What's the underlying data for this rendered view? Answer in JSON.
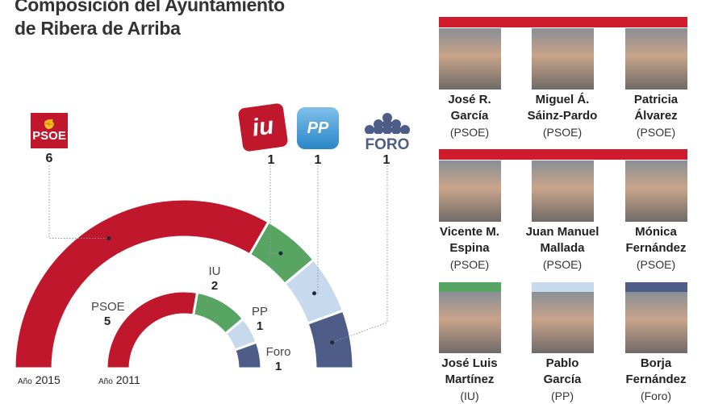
{
  "title": [
    "Composición del Ayuntamiento",
    "de Ribera de Arriba"
  ],
  "colors": {
    "PSOE": "#c0172c",
    "IU": "#58a563",
    "PP": "#c7d9ec",
    "Foro": "#4d5d88",
    "header_bar": "#d01a2e"
  },
  "logos": [
    {
      "party": "PSOE",
      "text": "PSOE",
      "seats": "6"
    },
    {
      "party": "IU",
      "text": "iu",
      "seats": "1"
    },
    {
      "party": "PP",
      "text": "PP",
      "seats": "1"
    },
    {
      "party": "Foro",
      "text": "FORO",
      "seats": "1"
    }
  ],
  "chart_data": {
    "type": "parliament-semicircle",
    "series": [
      {
        "name": "Año 2015",
        "year_prefix": "Año",
        "year": "2015",
        "values": [
          {
            "party": "PSOE",
            "seats": 6
          },
          {
            "party": "IU",
            "seats": 1
          },
          {
            "party": "PP",
            "seats": 1
          },
          {
            "party": "Foro",
            "seats": 1
          }
        ]
      },
      {
        "name": "Año 2011",
        "year_prefix": "Año",
        "year": "2011",
        "values": [
          {
            "party": "PSOE",
            "seats": 5
          },
          {
            "party": "IU",
            "seats": 2
          },
          {
            "party": "PP",
            "seats": 1
          },
          {
            "party": "Foro",
            "seats": 1
          }
        ]
      }
    ],
    "labels_2011": [
      {
        "party": "PSOE",
        "seats": "5"
      },
      {
        "party": "IU",
        "seats": "2"
      },
      {
        "party": "PP",
        "seats": "1"
      },
      {
        "party": "Foro",
        "seats": "1"
      }
    ]
  },
  "councillors": [
    {
      "name1": "José R.",
      "name2": "García",
      "party": "(PSOE)"
    },
    {
      "name1": "Miguel Á.",
      "name2": "Sáinz-Pardo",
      "party": "(PSOE)"
    },
    {
      "name1": "Patricia",
      "name2": "Álvarez",
      "party": "(PSOE)"
    },
    {
      "name1": "Vicente M.",
      "name2": "Espina",
      "party": "(PSOE)"
    },
    {
      "name1": "Juan Manuel",
      "name2": "Mallada",
      "party": "(PSOE)"
    },
    {
      "name1": "Mónica",
      "name2": "Fernández",
      "party": "(PSOE)"
    },
    {
      "name1": "José Luis",
      "name2": "Martínez",
      "party": "(IU)"
    },
    {
      "name1": "Pablo",
      "name2": "García",
      "party": "(PP)"
    },
    {
      "name1": "Borja",
      "name2": "Fernández",
      "party": "(Foro)"
    }
  ]
}
